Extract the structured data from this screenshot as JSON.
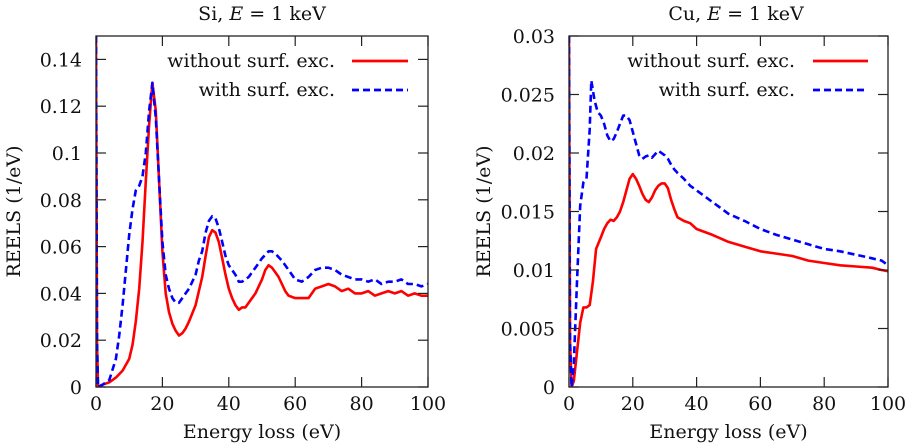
{
  "chart_data": [
    {
      "type": "line",
      "title": "Si, E = 1 keV",
      "title_parts": {
        "prefix": "Si, ",
        "var": "E",
        "suffix": " = 1 keV"
      },
      "xlabel": "Energy loss (eV)",
      "ylabel": "REELS (1/eV)",
      "xlim": [
        0,
        100
      ],
      "ylim": [
        0,
        0.15
      ],
      "xticks": [
        0,
        20,
        40,
        60,
        80,
        100
      ],
      "xtick_labels": [
        "0",
        "20",
        "40",
        "60",
        "80",
        "100"
      ],
      "yticks": [
        0,
        0.02,
        0.04,
        0.06,
        0.08,
        0.1,
        0.12,
        0.14
      ],
      "ytick_labels": [
        "0",
        "0.02",
        "0.04",
        "0.06",
        "0.08",
        "0.1",
        "0.12",
        "0.14"
      ],
      "grid": false,
      "legend_position": "top-right",
      "series": [
        {
          "name": "without surf. exc.",
          "color": "#ff0000",
          "style": "solid",
          "x": [
            0,
            0.3,
            0.6,
            2,
            4,
            6,
            8,
            10,
            11,
            12,
            13,
            14,
            15,
            16,
            17,
            18,
            19,
            20,
            21,
            22,
            23,
            24,
            25,
            26,
            27,
            28,
            30,
            32,
            33,
            34,
            35,
            36,
            37,
            38,
            39,
            40,
            41,
            42,
            43,
            44,
            45,
            46,
            48,
            50,
            51,
            52,
            53,
            54,
            55,
            56,
            57,
            58,
            60,
            62,
            64,
            66,
            68,
            70,
            72,
            74,
            76,
            78,
            80,
            82,
            84,
            86,
            88,
            90,
            92,
            94,
            96,
            98,
            100
          ],
          "y": [
            0.15,
            0.02,
            0.0,
            0.001,
            0.002,
            0.004,
            0.007,
            0.012,
            0.018,
            0.028,
            0.042,
            0.062,
            0.088,
            0.112,
            0.13,
            0.118,
            0.088,
            0.058,
            0.04,
            0.032,
            0.027,
            0.024,
            0.022,
            0.023,
            0.025,
            0.028,
            0.035,
            0.047,
            0.056,
            0.064,
            0.067,
            0.066,
            0.062,
            0.055,
            0.048,
            0.042,
            0.038,
            0.035,
            0.033,
            0.034,
            0.034,
            0.036,
            0.04,
            0.046,
            0.05,
            0.052,
            0.051,
            0.049,
            0.047,
            0.044,
            0.041,
            0.039,
            0.038,
            0.038,
            0.038,
            0.042,
            0.043,
            0.044,
            0.043,
            0.041,
            0.042,
            0.04,
            0.04,
            0.041,
            0.039,
            0.04,
            0.041,
            0.04,
            0.041,
            0.039,
            0.04,
            0.039,
            0.039
          ]
        },
        {
          "name": "with surf. exc.",
          "color": "#0000ff",
          "style": "dashed",
          "x": [
            0,
            0.3,
            0.6,
            2,
            4,
            6,
            7,
            8,
            9,
            10,
            11,
            12,
            13,
            14,
            15,
            16,
            17,
            18,
            19,
            20,
            21,
            22,
            23,
            24,
            25,
            26,
            27,
            28,
            30,
            31,
            32,
            33,
            34,
            35,
            36,
            37,
            38,
            39,
            40,
            42,
            43,
            44,
            46,
            48,
            50,
            52,
            53,
            54,
            56,
            58,
            60,
            62,
            64,
            66,
            68,
            70,
            72,
            74,
            76,
            78,
            80,
            82,
            84,
            86,
            88,
            90,
            92,
            94,
            96,
            98,
            100
          ],
          "y": [
            0.15,
            0.02,
            0.0,
            0.001,
            0.003,
            0.012,
            0.022,
            0.035,
            0.05,
            0.065,
            0.076,
            0.084,
            0.086,
            0.09,
            0.1,
            0.118,
            0.13,
            0.115,
            0.088,
            0.062,
            0.048,
            0.042,
            0.038,
            0.036,
            0.036,
            0.038,
            0.04,
            0.042,
            0.048,
            0.054,
            0.058,
            0.066,
            0.071,
            0.073,
            0.072,
            0.068,
            0.062,
            0.056,
            0.052,
            0.048,
            0.045,
            0.045,
            0.047,
            0.051,
            0.055,
            0.058,
            0.058,
            0.057,
            0.054,
            0.05,
            0.046,
            0.045,
            0.047,
            0.05,
            0.051,
            0.051,
            0.05,
            0.048,
            0.047,
            0.046,
            0.046,
            0.045,
            0.046,
            0.044,
            0.045,
            0.045,
            0.046,
            0.044,
            0.044,
            0.043,
            0.044
          ]
        }
      ]
    },
    {
      "type": "line",
      "title": "Cu, E = 1 keV",
      "title_parts": {
        "prefix": "Cu, ",
        "var": "E",
        "suffix": " = 1 keV"
      },
      "xlabel": "Energy loss (eV)",
      "ylabel": "REELS (1/eV)",
      "xlim": [
        0,
        100
      ],
      "ylim": [
        0,
        0.03
      ],
      "xticks": [
        0,
        20,
        40,
        60,
        80,
        100
      ],
      "xtick_labels": [
        "0",
        "20",
        "40",
        "60",
        "80",
        "100"
      ],
      "yticks": [
        0,
        0.005,
        0.01,
        0.015,
        0.02,
        0.025,
        0.03
      ],
      "ytick_labels": [
        "0",
        "0.005",
        "0.01",
        "0.015",
        "0.02",
        "0.025",
        "0.03"
      ],
      "grid": false,
      "legend_position": "top-right",
      "series": [
        {
          "name": "without surf. exc.",
          "color": "#ff0000",
          "style": "solid",
          "x": [
            0,
            0.3,
            0.8,
            1.5,
            2.5,
            3.5,
            4.5,
            5.5,
            6.5,
            7.5,
            8.5,
            10,
            11,
            12,
            13,
            14,
            15,
            16,
            17,
            18,
            19,
            20,
            21,
            22,
            23,
            24,
            25,
            26,
            27,
            28,
            29,
            30,
            31,
            32,
            33,
            34,
            36,
            38,
            40,
            45,
            50,
            55,
            60,
            65,
            70,
            75,
            80,
            85,
            90,
            95,
            98,
            100
          ],
          "y": [
            0.03,
            0.004,
            0.0,
            0.0005,
            0.003,
            0.0055,
            0.0068,
            0.0068,
            0.007,
            0.009,
            0.0118,
            0.0128,
            0.0135,
            0.014,
            0.0143,
            0.0142,
            0.0145,
            0.015,
            0.0158,
            0.0168,
            0.0178,
            0.0182,
            0.0178,
            0.0172,
            0.0165,
            0.016,
            0.0158,
            0.0162,
            0.0168,
            0.0172,
            0.0174,
            0.0174,
            0.017,
            0.016,
            0.0152,
            0.0145,
            0.0142,
            0.014,
            0.0135,
            0.013,
            0.0124,
            0.012,
            0.0116,
            0.0114,
            0.0112,
            0.0108,
            0.0106,
            0.0104,
            0.0103,
            0.0102,
            0.01,
            0.0099
          ]
        },
        {
          "name": "with surf. exc.",
          "color": "#0000ff",
          "style": "dashed",
          "x": [
            0,
            0.3,
            0.8,
            1.5,
            2.5,
            3.5,
            4.5,
            5.5,
            6.5,
            7,
            8,
            9,
            10,
            11,
            12,
            13,
            14,
            15,
            16,
            17,
            18,
            19,
            20,
            21,
            22,
            23,
            24,
            25,
            26,
            27,
            28,
            29,
            30,
            31,
            32,
            33,
            34,
            36,
            38,
            40,
            45,
            50,
            55,
            60,
            65,
            70,
            75,
            80,
            85,
            90,
            95,
            98,
            100
          ],
          "y": [
            0.03,
            0.004,
            0.0,
            0.002,
            0.009,
            0.0155,
            0.0175,
            0.0178,
            0.022,
            0.0262,
            0.0245,
            0.0235,
            0.0232,
            0.0225,
            0.0215,
            0.021,
            0.0212,
            0.0218,
            0.0225,
            0.0232,
            0.0232,
            0.0228,
            0.0218,
            0.0208,
            0.0198,
            0.0195,
            0.0197,
            0.0198,
            0.0196,
            0.0199,
            0.0202,
            0.02,
            0.0198,
            0.0195,
            0.019,
            0.0186,
            0.0183,
            0.0178,
            0.0172,
            0.0168,
            0.0158,
            0.0148,
            0.0142,
            0.0135,
            0.013,
            0.0126,
            0.0122,
            0.0118,
            0.0116,
            0.0113,
            0.011,
            0.0108,
            0.0104
          ]
        }
      ]
    }
  ]
}
